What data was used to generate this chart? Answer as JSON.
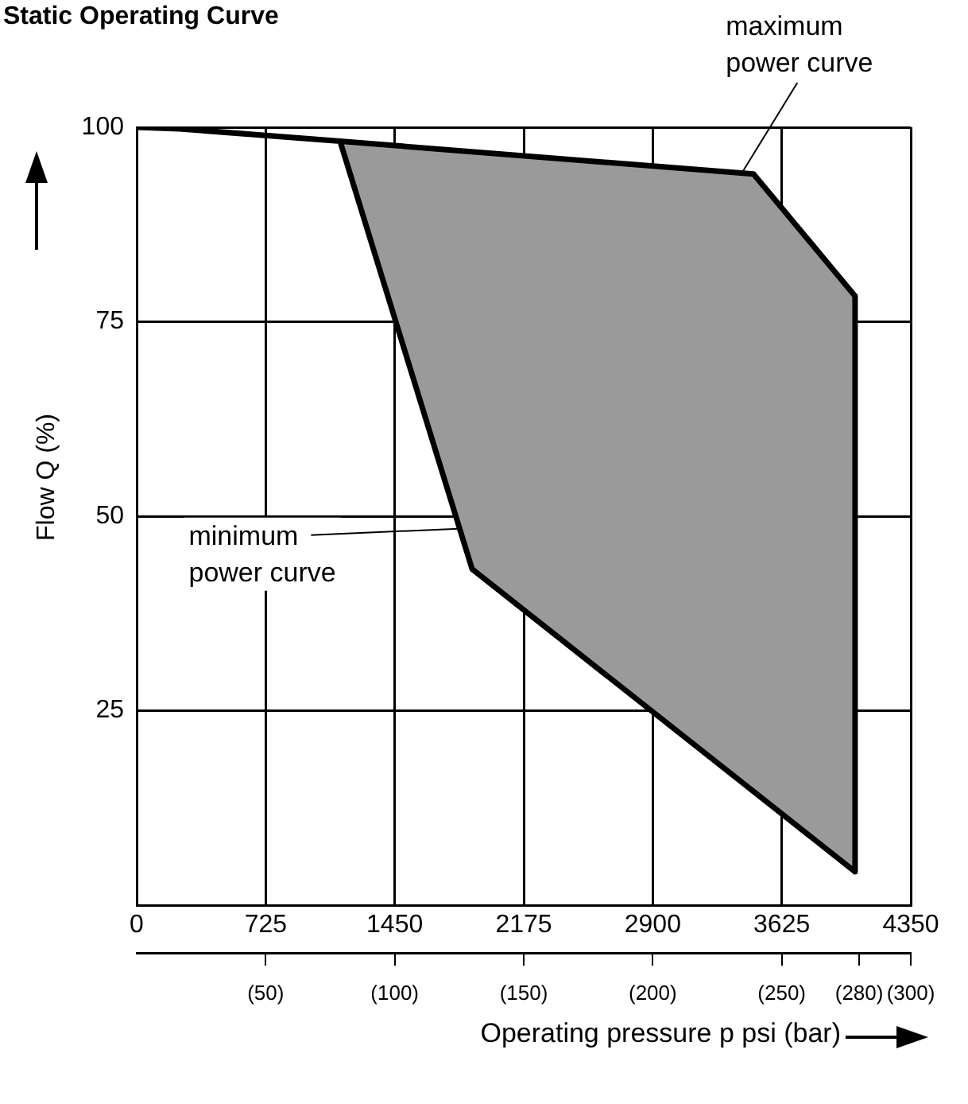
{
  "chart_data": {
    "type": "line",
    "title": "Static Operating Curve",
    "xlabel": "Operating pressure p psi (bar)",
    "ylabel": "Flow Q (%)",
    "series": [
      {
        "type": "line",
        "color": "#000000",
        "x": [
          0,
          241,
          1143,
          3466,
          4037,
          4037,
          1885,
          1143
        ],
        "values": [
          100,
          99.8,
          98.2,
          94.0,
          78.3,
          4.3,
          43.2,
          98.2
        ]
      },
      {
        "type": "area",
        "color": "#9a9a9a",
        "x": [
          1143,
          3466,
          4037,
          4037,
          1885,
          1143
        ],
        "values": [
          98.2,
          94.0,
          78.3,
          4.3,
          43.2,
          98.2
        ]
      }
    ],
    "annotations": [
      {
        "text": "maximum power curve",
        "x": 3400,
        "y": 94.1
      },
      {
        "text": "minimum power curve",
        "x": 1811,
        "y": 48.4
      }
    ],
    "xlim": [
      0,
      4350
    ],
    "xticks": [
      0,
      725,
      1450,
      2175,
      2900,
      3625,
      4350
    ],
    "ylim": [
      0,
      100
    ],
    "yticks": [
      {
        "value": 0,
        "label": null
      },
      25,
      50,
      75,
      100
    ],
    "x2lim": [
      0,
      300
    ],
    "x2ticks": [
      {
        "value": 50,
        "label": "(50)"
      },
      {
        "value": 100,
        "label": "(100)"
      },
      {
        "value": 150,
        "label": "(150)"
      },
      {
        "value": 200,
        "label": "(200)"
      },
      {
        "value": 250,
        "label": "(250)"
      },
      {
        "value": 280,
        "label": "(280)"
      },
      {
        "value": 300,
        "label": "(300)"
      }
    ],
    "grid": true,
    "legend": false,
    "marker": "none",
    "line_style": "solid"
  }
}
